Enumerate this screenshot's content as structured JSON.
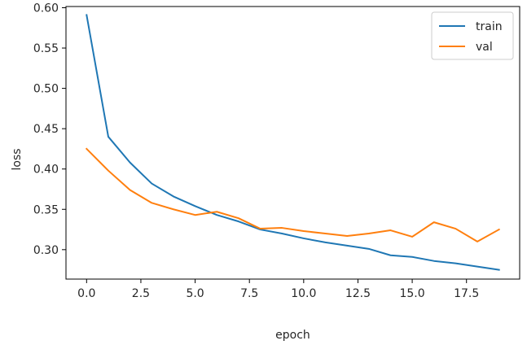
{
  "chart_data": {
    "type": "line",
    "xlabel": "epoch",
    "ylabel": "loss",
    "xlim": [
      -0.95,
      19.95
    ],
    "ylim": [
      0.2635,
      0.6015
    ],
    "xticks": [
      0.0,
      2.5,
      5.0,
      7.5,
      10.0,
      12.5,
      15.0,
      17.5
    ],
    "xtick_labels": [
      "0.0",
      "2.5",
      "5.0",
      "7.5",
      "10.0",
      "12.5",
      "15.0",
      "17.5"
    ],
    "yticks": [
      0.3,
      0.35,
      0.4,
      0.45,
      0.5,
      0.55,
      0.6
    ],
    "ytick_labels": [
      "0.30",
      "0.35",
      "0.40",
      "0.45",
      "0.50",
      "0.55",
      "0.60"
    ],
    "grid": false,
    "legend_position": "top-right",
    "x": [
      0,
      1,
      2,
      3,
      4,
      5,
      6,
      7,
      8,
      9,
      10,
      11,
      12,
      13,
      14,
      15,
      16,
      17,
      18,
      19
    ],
    "series": [
      {
        "name": "train",
        "color": "#1f77b4",
        "values": [
          0.591,
          0.44,
          0.408,
          0.382,
          0.366,
          0.354,
          0.343,
          0.335,
          0.325,
          0.32,
          0.314,
          0.309,
          0.305,
          0.301,
          0.293,
          0.291,
          0.286,
          0.283,
          0.279,
          0.275
        ]
      },
      {
        "name": "val",
        "color": "#ff7f0e",
        "values": [
          0.425,
          0.398,
          0.374,
          0.358,
          0.35,
          0.343,
          0.347,
          0.339,
          0.326,
          0.327,
          0.323,
          0.32,
          0.317,
          0.32,
          0.324,
          0.316,
          0.334,
          0.326,
          0.31,
          0.325
        ]
      }
    ]
  }
}
